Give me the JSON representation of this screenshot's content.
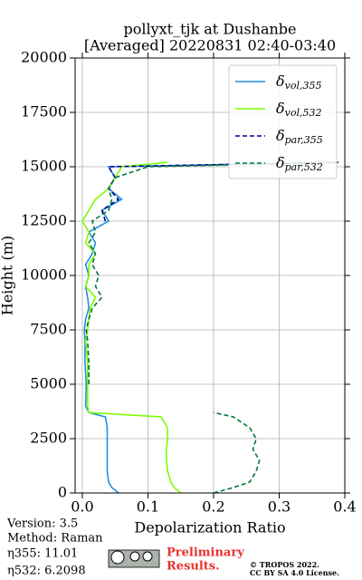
{
  "chart_data": {
    "type": "line",
    "title": [
      "pollyxt_tjk at Dushanbe",
      "[Averaged] 20220831 02:40-03:40"
    ],
    "x_label": "Depolarization Ratio",
    "y_label": "Height (m)",
    "y": [
      0,
      250,
      500,
      1000,
      1500,
      2000,
      2500,
      3000,
      3500,
      3700,
      4000,
      5000,
      6000,
      7000,
      7500,
      8000,
      8500,
      9000,
      9500,
      10000,
      10500,
      11000,
      11500,
      12000,
      12500,
      13000,
      13500,
      14000,
      14500,
      15000,
      15200
    ],
    "series": [
      {
        "name": "δ",
        "subscript": "vol,355",
        "color": "#1f8fe6",
        "dash": false,
        "values": [
          0.055,
          0.045,
          0.04,
          0.038,
          0.038,
          0.038,
          0.038,
          0.038,
          0.035,
          0.01,
          0.005,
          0.006,
          0.004,
          0.004,
          0.003,
          0.005,
          0.01,
          0.008,
          0.005,
          0.01,
          0.005,
          0.015,
          0.02,
          0.01,
          0.04,
          0.03,
          0.06,
          0.04,
          0.05,
          0.04,
          0.39
        ]
      },
      {
        "name": "δ",
        "subscript": "vol,532",
        "color": "#7cfc00",
        "dash": false,
        "values": [
          0.15,
          0.14,
          0.135,
          0.13,
          0.128,
          0.128,
          0.13,
          0.13,
          0.12,
          0.01,
          0.008,
          0.008,
          0.008,
          0.005,
          0.008,
          0.01,
          0.012,
          0.02,
          0.005,
          0.01,
          0.01,
          0.02,
          0.005,
          0.01,
          0.0,
          0.01,
          0.02,
          0.04,
          0.05,
          0.06,
          0.13
        ]
      },
      {
        "name": "δ",
        "subscript": "par,355",
        "color": "#00008b",
        "dash": true,
        "values": [
          null,
          null,
          null,
          null,
          null,
          null,
          null,
          null,
          null,
          null,
          null,
          null,
          null,
          null,
          null,
          null,
          null,
          null,
          null,
          null,
          null,
          null,
          null,
          null,
          0.035,
          0.03,
          0.055,
          0.04,
          0.05,
          0.04,
          0.39
        ]
      },
      {
        "name": "δ",
        "subscript": "par,532",
        "color": "#007a33",
        "dash": true,
        "values": [
          0.2,
          0.23,
          0.255,
          0.265,
          0.27,
          0.26,
          0.265,
          0.255,
          0.23,
          0.2,
          null,
          0.01,
          0.01,
          0.008,
          0.006,
          0.01,
          0.015,
          0.03,
          0.02,
          0.025,
          0.015,
          0.02,
          0.01,
          0.02,
          0.015,
          0.04,
          0.045,
          0.04,
          0.05,
          0.1,
          0.39
        ]
      }
    ],
    "xlim": [
      -0.011,
      0.4
    ],
    "ylim": [
      0,
      20000
    ],
    "xticks": [
      {
        "value": 0,
        "label": "0.0"
      },
      0.1,
      0.2,
      0.3,
      0.4
    ],
    "yticks": [
      0,
      2500,
      5000,
      7500,
      10000,
      12500,
      15000,
      17500,
      20000
    ],
    "grid": true,
    "legend": "upper right",
    "footer": {
      "version": "Version: 3.5",
      "method": "Method: Raman",
      "eta355": "η355:  11.01",
      "eta532": "η532: 6.2098",
      "preliminary": [
        "Preliminary",
        "Results."
      ],
      "copyright": [
        "© TROPOS 2022.",
        "CC BY SA 4.0 License."
      ]
    }
  }
}
